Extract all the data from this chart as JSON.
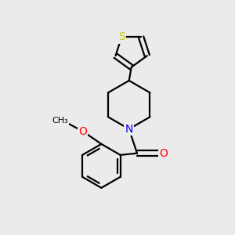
{
  "background_color": "#ebebeb",
  "bond_color": "#000000",
  "bond_width": 1.6,
  "atom_colors": {
    "S": "#cccc00",
    "N": "#0000ff",
    "O": "#ff0000",
    "C": "#000000"
  },
  "figsize": [
    3.0,
    3.0
  ],
  "dpi": 100,
  "xlim": [
    0,
    10
  ],
  "ylim": [
    0,
    10
  ]
}
